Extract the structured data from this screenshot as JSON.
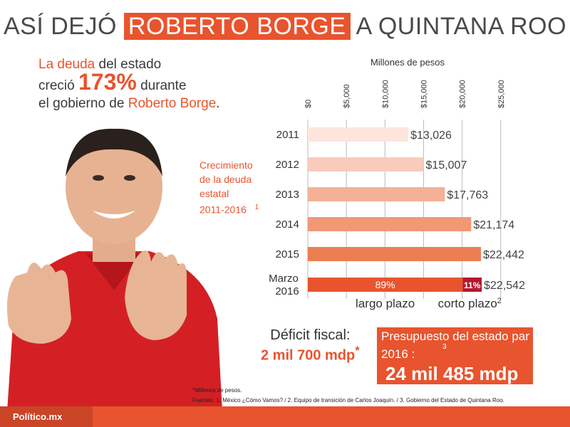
{
  "title": {
    "pre": "ASÍ DEJÓ",
    "highlight": "ROBERTO BORGE",
    "post": "A QUINTANA ROO"
  },
  "intro": {
    "line1_org1": "La deuda",
    "line1_rest": " del estado",
    "line2_pre": "creció ",
    "line2_pct": "173%",
    "line2_post": " durante",
    "line3_pre": "el gobierno de ",
    "line3_org": "Roberto Borge",
    "line3_post": "."
  },
  "growth_label": {
    "line1": "Crecimiento",
    "line2": "de la deuda",
    "line3": "estatal",
    "line4": "2011-2016",
    "sup": "1"
  },
  "chart_data": {
    "type": "bar",
    "orientation": "horizontal",
    "title": "",
    "xlabel": "Millones de pesos",
    "xlim": [
      0,
      28000
    ],
    "xticks": [
      "$0",
      "$5,000",
      "$10,000",
      "$15,000",
      "$20,000",
      "$25,000"
    ],
    "categories": [
      "2011",
      "2012",
      "2013",
      "2014",
      "2015",
      "Marzo 2016"
    ],
    "values": [
      13026,
      15007,
      17763,
      21174,
      22442,
      22542
    ],
    "value_labels": [
      "$13,026",
      "$15,007",
      "$17,763",
      "$21,174",
      "$22,442",
      "$22,542"
    ],
    "bar_colors": [
      "#fde4dc",
      "#f9cbbb",
      "#f5b198",
      "#f19875",
      "#ec7e52",
      "#e8542e"
    ],
    "split_last_bar": {
      "segments": [
        {
          "name": "largo plazo",
          "share_label": "89%",
          "share": 0.89,
          "color": "#e8542e"
        },
        {
          "name": "corto plazo",
          "share_label": "11%",
          "share": 0.11,
          "color": "#b2192e"
        }
      ],
      "sup": "2"
    }
  },
  "deficit": {
    "label": "Déficit fiscal:",
    "value": "2 mil 700 mdp",
    "sup": "*"
  },
  "budget": {
    "line1": "Presupuesto del estado par",
    "line2": "2016 :",
    "sup": "3",
    "value": "24 mil 485 mdp"
  },
  "notes": {
    "line1": "*Millones de pesos.",
    "line2": "Fuentes: 1. México ¿Cómo Vamos? / 2. Equipo de transición de Carlos Joaquín. / 3. Gobierno del Estado de Quintana Roo."
  },
  "footer": {
    "brand": "Político.mx"
  },
  "colors": {
    "accent": "#e8542e",
    "dark_red": "#b2192e",
    "shirt": "#d42024"
  }
}
